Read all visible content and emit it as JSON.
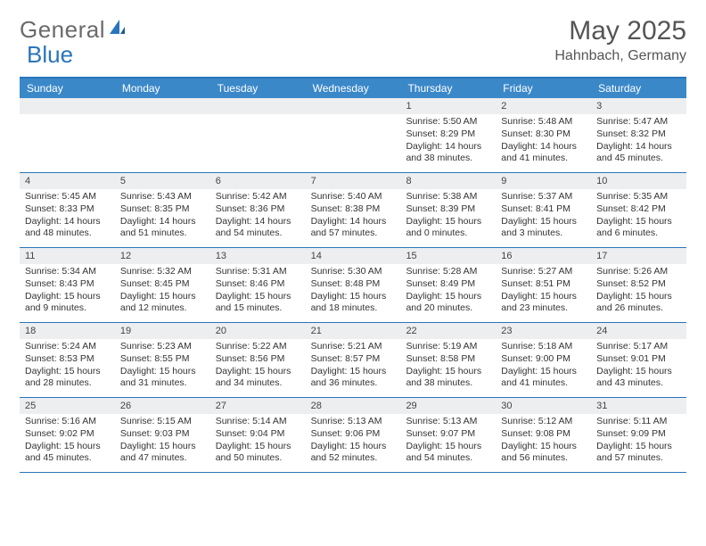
{
  "logo": {
    "part1": "General",
    "part2": "Blue"
  },
  "title": "May 2025",
  "location": "Hahnbach, Germany",
  "colors": {
    "header_bar": "#3b88c9",
    "rule": "#2a75bb",
    "day_head_bg": "#eceef0",
    "text": "#333333",
    "title_text": "#555555"
  },
  "day_names": [
    "Sunday",
    "Monday",
    "Tuesday",
    "Wednesday",
    "Thursday",
    "Friday",
    "Saturday"
  ],
  "weeks": [
    [
      {
        "n": "",
        "sr": "",
        "ss": "",
        "dl": ""
      },
      {
        "n": "",
        "sr": "",
        "ss": "",
        "dl": ""
      },
      {
        "n": "",
        "sr": "",
        "ss": "",
        "dl": ""
      },
      {
        "n": "",
        "sr": "",
        "ss": "",
        "dl": ""
      },
      {
        "n": "1",
        "sr": "Sunrise: 5:50 AM",
        "ss": "Sunset: 8:29 PM",
        "dl": "Daylight: 14 hours and 38 minutes."
      },
      {
        "n": "2",
        "sr": "Sunrise: 5:48 AM",
        "ss": "Sunset: 8:30 PM",
        "dl": "Daylight: 14 hours and 41 minutes."
      },
      {
        "n": "3",
        "sr": "Sunrise: 5:47 AM",
        "ss": "Sunset: 8:32 PM",
        "dl": "Daylight: 14 hours and 45 minutes."
      }
    ],
    [
      {
        "n": "4",
        "sr": "Sunrise: 5:45 AM",
        "ss": "Sunset: 8:33 PM",
        "dl": "Daylight: 14 hours and 48 minutes."
      },
      {
        "n": "5",
        "sr": "Sunrise: 5:43 AM",
        "ss": "Sunset: 8:35 PM",
        "dl": "Daylight: 14 hours and 51 minutes."
      },
      {
        "n": "6",
        "sr": "Sunrise: 5:42 AM",
        "ss": "Sunset: 8:36 PM",
        "dl": "Daylight: 14 hours and 54 minutes."
      },
      {
        "n": "7",
        "sr": "Sunrise: 5:40 AM",
        "ss": "Sunset: 8:38 PM",
        "dl": "Daylight: 14 hours and 57 minutes."
      },
      {
        "n": "8",
        "sr": "Sunrise: 5:38 AM",
        "ss": "Sunset: 8:39 PM",
        "dl": "Daylight: 15 hours and 0 minutes."
      },
      {
        "n": "9",
        "sr": "Sunrise: 5:37 AM",
        "ss": "Sunset: 8:41 PM",
        "dl": "Daylight: 15 hours and 3 minutes."
      },
      {
        "n": "10",
        "sr": "Sunrise: 5:35 AM",
        "ss": "Sunset: 8:42 PM",
        "dl": "Daylight: 15 hours and 6 minutes."
      }
    ],
    [
      {
        "n": "11",
        "sr": "Sunrise: 5:34 AM",
        "ss": "Sunset: 8:43 PM",
        "dl": "Daylight: 15 hours and 9 minutes."
      },
      {
        "n": "12",
        "sr": "Sunrise: 5:32 AM",
        "ss": "Sunset: 8:45 PM",
        "dl": "Daylight: 15 hours and 12 minutes."
      },
      {
        "n": "13",
        "sr": "Sunrise: 5:31 AM",
        "ss": "Sunset: 8:46 PM",
        "dl": "Daylight: 15 hours and 15 minutes."
      },
      {
        "n": "14",
        "sr": "Sunrise: 5:30 AM",
        "ss": "Sunset: 8:48 PM",
        "dl": "Daylight: 15 hours and 18 minutes."
      },
      {
        "n": "15",
        "sr": "Sunrise: 5:28 AM",
        "ss": "Sunset: 8:49 PM",
        "dl": "Daylight: 15 hours and 20 minutes."
      },
      {
        "n": "16",
        "sr": "Sunrise: 5:27 AM",
        "ss": "Sunset: 8:51 PM",
        "dl": "Daylight: 15 hours and 23 minutes."
      },
      {
        "n": "17",
        "sr": "Sunrise: 5:26 AM",
        "ss": "Sunset: 8:52 PM",
        "dl": "Daylight: 15 hours and 26 minutes."
      }
    ],
    [
      {
        "n": "18",
        "sr": "Sunrise: 5:24 AM",
        "ss": "Sunset: 8:53 PM",
        "dl": "Daylight: 15 hours and 28 minutes."
      },
      {
        "n": "19",
        "sr": "Sunrise: 5:23 AM",
        "ss": "Sunset: 8:55 PM",
        "dl": "Daylight: 15 hours and 31 minutes."
      },
      {
        "n": "20",
        "sr": "Sunrise: 5:22 AM",
        "ss": "Sunset: 8:56 PM",
        "dl": "Daylight: 15 hours and 34 minutes."
      },
      {
        "n": "21",
        "sr": "Sunrise: 5:21 AM",
        "ss": "Sunset: 8:57 PM",
        "dl": "Daylight: 15 hours and 36 minutes."
      },
      {
        "n": "22",
        "sr": "Sunrise: 5:19 AM",
        "ss": "Sunset: 8:58 PM",
        "dl": "Daylight: 15 hours and 38 minutes."
      },
      {
        "n": "23",
        "sr": "Sunrise: 5:18 AM",
        "ss": "Sunset: 9:00 PM",
        "dl": "Daylight: 15 hours and 41 minutes."
      },
      {
        "n": "24",
        "sr": "Sunrise: 5:17 AM",
        "ss": "Sunset: 9:01 PM",
        "dl": "Daylight: 15 hours and 43 minutes."
      }
    ],
    [
      {
        "n": "25",
        "sr": "Sunrise: 5:16 AM",
        "ss": "Sunset: 9:02 PM",
        "dl": "Daylight: 15 hours and 45 minutes."
      },
      {
        "n": "26",
        "sr": "Sunrise: 5:15 AM",
        "ss": "Sunset: 9:03 PM",
        "dl": "Daylight: 15 hours and 47 minutes."
      },
      {
        "n": "27",
        "sr": "Sunrise: 5:14 AM",
        "ss": "Sunset: 9:04 PM",
        "dl": "Daylight: 15 hours and 50 minutes."
      },
      {
        "n": "28",
        "sr": "Sunrise: 5:13 AM",
        "ss": "Sunset: 9:06 PM",
        "dl": "Daylight: 15 hours and 52 minutes."
      },
      {
        "n": "29",
        "sr": "Sunrise: 5:13 AM",
        "ss": "Sunset: 9:07 PM",
        "dl": "Daylight: 15 hours and 54 minutes."
      },
      {
        "n": "30",
        "sr": "Sunrise: 5:12 AM",
        "ss": "Sunset: 9:08 PM",
        "dl": "Daylight: 15 hours and 56 minutes."
      },
      {
        "n": "31",
        "sr": "Sunrise: 5:11 AM",
        "ss": "Sunset: 9:09 PM",
        "dl": "Daylight: 15 hours and 57 minutes."
      }
    ]
  ]
}
